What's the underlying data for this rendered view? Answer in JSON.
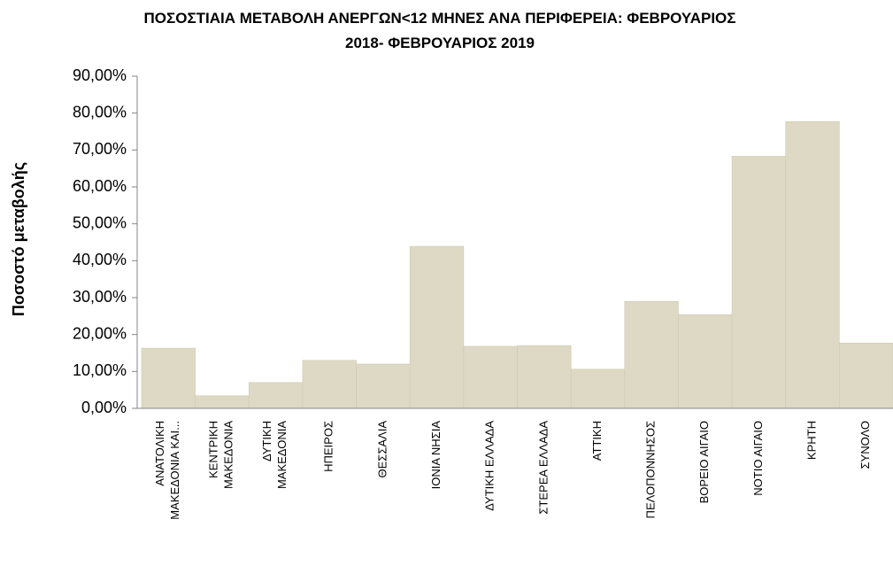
{
  "chart_data": {
    "type": "bar",
    "title": "ΠΟΣΟΣΤΙΑΙΑ ΜΕΤΑΒΟΛΗ  ΑΝΕΡΓΩΝ<12 ΜΗΝΕΣ ΑΝΑ ΠΕΡΙΦΕΡΕΙΑ: ΦΕΒΡΟΥΑΡΙΟΣ\n2018- ΦΕΒΡΟΥΑΡΙΟΣ  2019",
    "y_label": "Ποσοστό μεταβολής",
    "categories": [
      "ΑΝΑΤΟΛΙΚΗ\nΜΑΚΕΔΟΝΙΑ ΚΑΙ...",
      "ΚΕΝΤΡΙΚΗ\nΜΑΚΕΔΟΝΙΑ",
      "ΔΥΤΙΚΗ\nΜΑΚΕΔΟΝΙΑ",
      "ΗΠΕΙΡΟΣ",
      "ΘΕΣΣΑΛΙΑ",
      "ΙΟΝΙΑ ΝΗΣΙΑ",
      "ΔΥΤΙΚΗ ΕΛΛΑΔΑ",
      "ΣΤΕΡΕΑ ΕΛΛΑΔΑ",
      "ΑΤΤΙΚΗ",
      "ΠΕΛΟΠΟΝΝΗΣΟΣ",
      "ΒΟΡΕΙΟ ΑΙΓΑΙΟ",
      "ΝΟΤΙΟ ΑΙΓΑΙΟ",
      "ΚΡΗΤΗ",
      "ΣΥΝΟΛΟ"
    ],
    "values": [
      16.3,
      3.4,
      7.0,
      13.0,
      12.0,
      43.9,
      16.8,
      17.0,
      10.6,
      29.0,
      25.4,
      68.3,
      77.7,
      17.7
    ],
    "color": "#ddd9c4",
    "ylim": [
      0,
      90
    ],
    "yticks": [
      {
        "value": 0,
        "label": "0,00%"
      },
      {
        "value": 10,
        "label": "10,00%"
      },
      {
        "value": 20,
        "label": "20,00%"
      },
      {
        "value": 30,
        "label": "30,00%"
      },
      {
        "value": 40,
        "label": "40,00%"
      },
      {
        "value": 50,
        "label": "50,00%"
      },
      {
        "value": 60,
        "label": "60,00%"
      },
      {
        "value": 70,
        "label": "70,00%"
      },
      {
        "value": 80,
        "label": "80,00%"
      },
      {
        "value": 90,
        "label": "90,00%"
      }
    ],
    "grid": false
  }
}
